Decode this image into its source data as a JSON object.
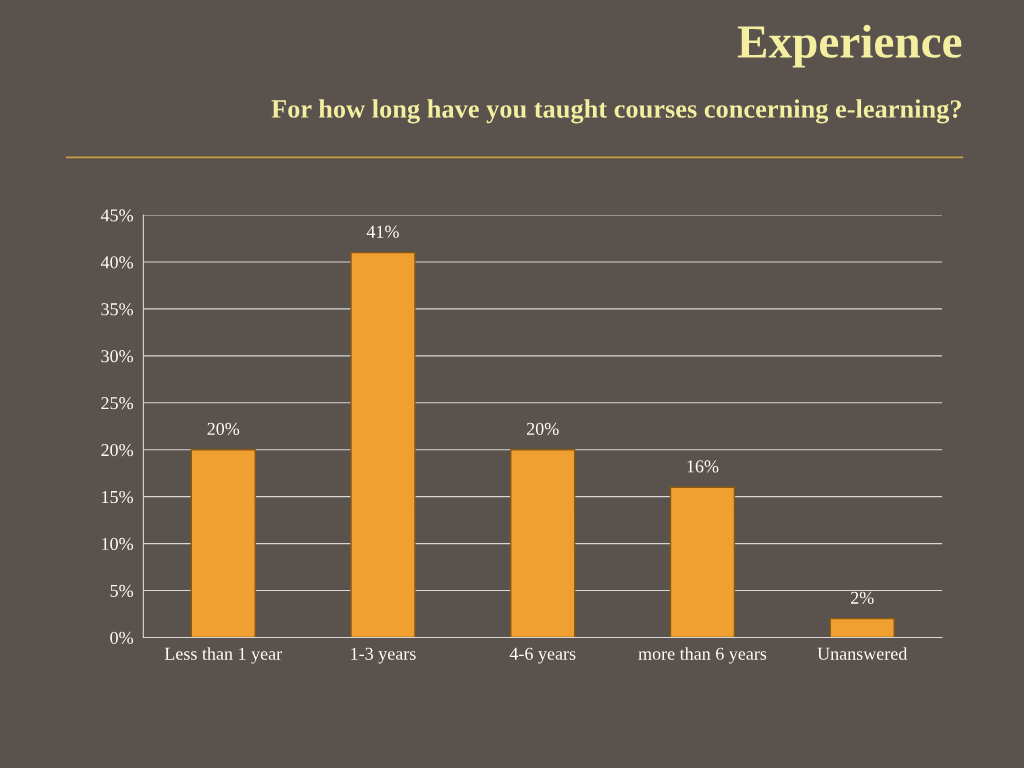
{
  "chart_data": {
    "type": "bar",
    "title": "Experience",
    "subtitle": "For how long have you taught courses concerning e-learning?",
    "categories": [
      "Less than 1 year",
      "1-3 years",
      "4-6 years",
      "more than 6 years",
      "Unanswered"
    ],
    "values": [
      20,
      41,
      20,
      16,
      2
    ],
    "value_labels": [
      "20%",
      "41%",
      "20%",
      "16%",
      "2%"
    ],
    "color": "#f0a030",
    "ylim": [
      0,
      45
    ],
    "yticks": [
      {
        "value": 0,
        "label": "0%"
      },
      {
        "value": 5,
        "label": "5%"
      },
      {
        "value": 10,
        "label": "10%"
      },
      {
        "value": 15,
        "label": "15%"
      },
      {
        "value": 20,
        "label": "20%"
      },
      {
        "value": 25,
        "label": "25%"
      },
      {
        "value": 30,
        "label": "30%"
      },
      {
        "value": 35,
        "label": "35%"
      },
      {
        "value": 40,
        "label": "40%"
      },
      {
        "value": 45,
        "label": "45%"
      }
    ],
    "grid": "y"
  }
}
